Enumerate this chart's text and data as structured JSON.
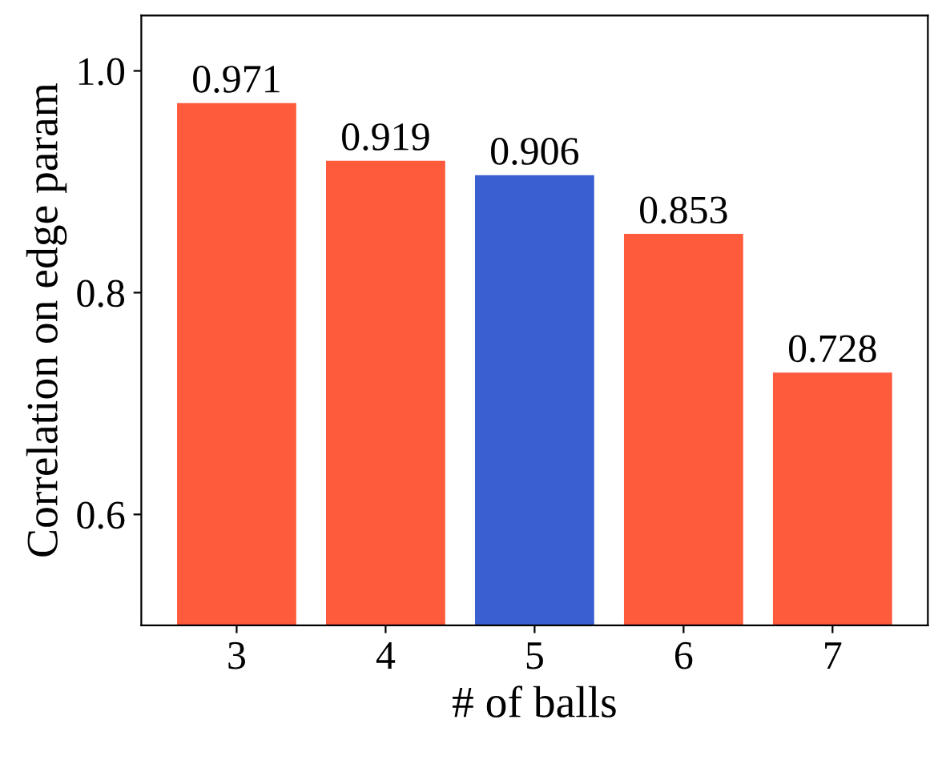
{
  "chart_data": {
    "type": "bar",
    "xlabel": "# of balls",
    "ylabel": "Correlation on edge param",
    "categories": [
      "3",
      "4",
      "5",
      "6",
      "7"
    ],
    "values": [
      0.971,
      0.919,
      0.906,
      0.853,
      0.728
    ],
    "colors": [
      "#fe5a3c",
      "#fe5a3c",
      "#3a5fd0",
      "#fe5a3c",
      "#fe5a3c"
    ],
    "ylim": [
      0.5,
      1.05
    ],
    "yticks": [
      {
        "value": 0.6,
        "label": "0.6"
      },
      {
        "value": 0.8,
        "label": "0.8"
      },
      {
        "value": 1.0,
        "label": "1.0"
      }
    ],
    "data_labels": true,
    "grid": false,
    "legend": false
  }
}
